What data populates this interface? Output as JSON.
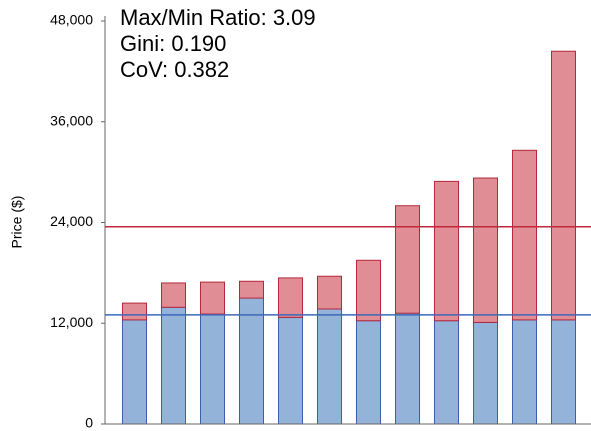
{
  "chart_data": {
    "type": "stacked_bar",
    "annotations": [
      "Max/Min Ratio: 3.09",
      "Gini: 0.190",
      "CoV: 0.382"
    ],
    "y_label": "Price ($)",
    "categories": [
      null,
      null,
      null,
      null,
      null,
      null,
      null,
      null,
      null,
      null,
      null,
      null
    ],
    "series": [
      {
        "color": "#94b3d9",
        "values": [
          12400,
          13900,
          13100,
          15000,
          12700,
          13700,
          12300,
          13200,
          12300,
          12100,
          12400,
          12400
        ]
      },
      {
        "color": "#e08d95",
        "values": [
          2000,
          2900,
          3800,
          2000,
          4700,
          3900,
          7200,
          12800,
          16600,
          17200,
          20200,
          32000
        ]
      }
    ],
    "reference_lines": [
      {
        "value": 13000,
        "color": "#3d67b8"
      },
      {
        "value": 23500,
        "color": "#c0283c"
      }
    ],
    "ylim": [
      0,
      48000
    ],
    "yticks": [
      0,
      {
        "value": 12000,
        "label": "12,000"
      },
      {
        "value": 24000,
        "label": "24,000"
      },
      {
        "value": 36000,
        "label": "36,000"
      },
      {
        "value": 48000,
        "label": "48,000"
      }
    ]
  }
}
